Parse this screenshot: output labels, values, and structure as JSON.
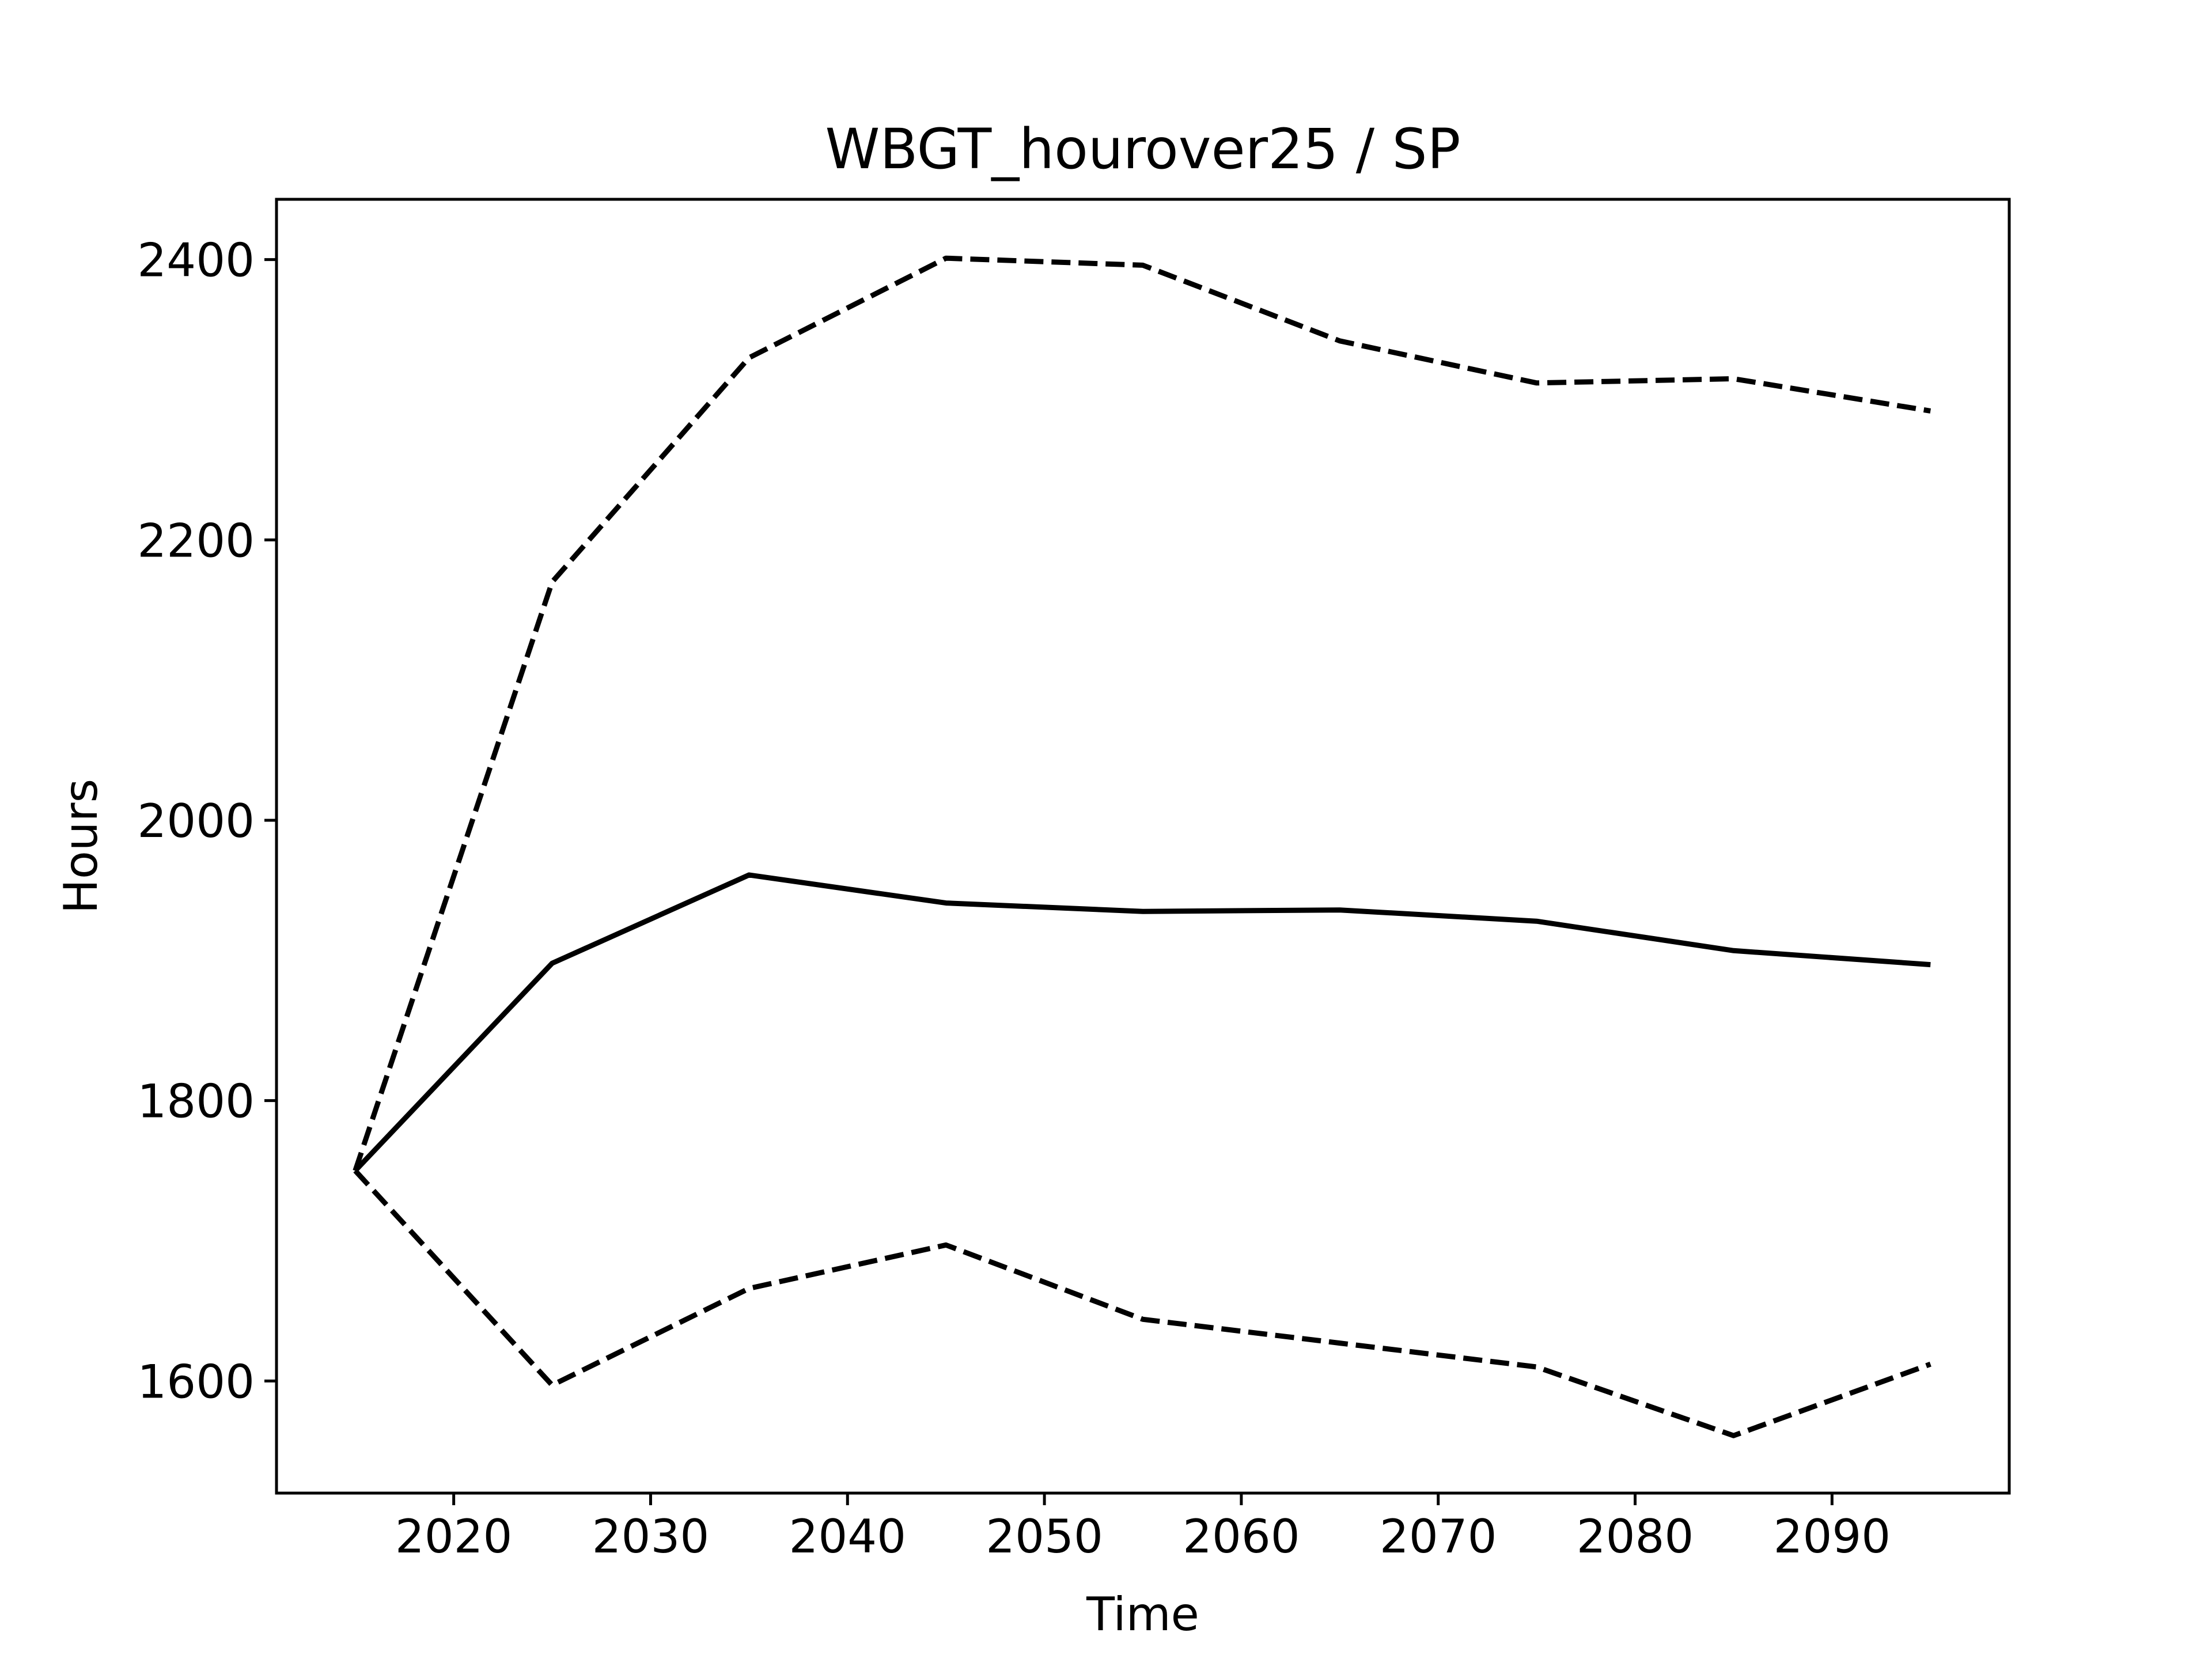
{
  "chart_data": {
    "type": "line",
    "title": "WBGT_hourover25 / SP",
    "xlabel": "Time",
    "ylabel": "Hours",
    "xlim": [
      2011,
      2099
    ],
    "ylim": [
      1520,
      2443
    ],
    "xticks": [
      2020,
      2030,
      2040,
      2050,
      2060,
      2070,
      2080,
      2090
    ],
    "yticks": [
      1600,
      1800,
      2000,
      2200,
      2400
    ],
    "grid": false,
    "x": [
      2015,
      2025,
      2035,
      2045,
      2055,
      2065,
      2075,
      2085,
      2095
    ],
    "series": [
      {
        "style": "solid",
        "color": "#000000",
        "values": [
          1750,
          1898,
          1961,
          1941,
          1935,
          1936,
          1928,
          1907,
          1897
        ]
      },
      {
        "style": "dashed",
        "color": "#000000",
        "values": [
          1750,
          2170,
          2330,
          2401,
          2396,
          2342,
          2312,
          2315,
          2292
        ]
      },
      {
        "style": "dashed",
        "color": "#000000",
        "values": [
          1750,
          1597,
          1666,
          1697,
          1644,
          1627,
          1610,
          1561,
          1612
        ]
      }
    ]
  }
}
